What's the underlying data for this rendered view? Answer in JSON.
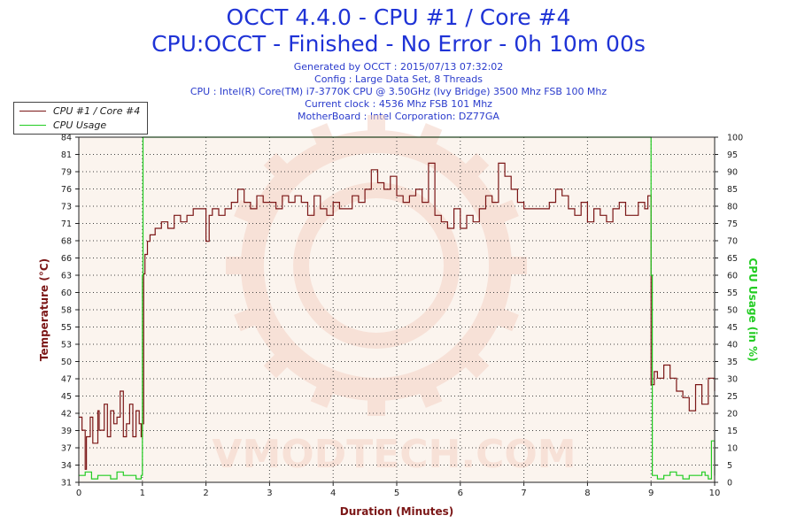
{
  "header": {
    "title_line1": "OCCT 4.4.0 - CPU #1 / Core #4",
    "title_line2": "CPU:OCCT - Finished - No Error - 0h 10m 00s",
    "info": [
      "Generated by OCCT : 2015/07/13 07:32:02",
      "Config : Large Data Set, 8 Threads",
      "CPU : Intel(R) Core(TM) i7-3770K CPU @ 3.50GHz (Ivy Bridge) 3500 Mhz FSB 100 Mhz",
      "Current clock : 4536 Mhz FSB 101 Mhz",
      "MotherBoard : Intel Corporation: DZ77GA"
    ]
  },
  "colors": {
    "temperature": "#7b1616",
    "cpu_usage": "#22cc22",
    "title": "#1f33d6",
    "plot_bg": "#fbf4ee",
    "watermark": "#f4d2c6"
  },
  "watermark_text": "VMODTECH.COM",
  "chart_data": {
    "type": "line",
    "xlabel": "Duration (Minutes)",
    "ylabel_left": "Temperature (°C)",
    "ylabel_right": "CPU Usage (in %)",
    "x_ticks": [
      "0",
      "1",
      "2",
      "3",
      "4",
      "5",
      "6",
      "7",
      "8",
      "9",
      "10"
    ],
    "xlim": [
      0,
      10
    ],
    "ylim_left": [
      31,
      84
    ],
    "ylim_right": [
      0,
      100
    ],
    "left_ticks": [
      "31",
      "34",
      "37",
      "39",
      "42",
      "45",
      "47",
      "50",
      "53",
      "55",
      "58",
      "60",
      "63",
      "66",
      "68",
      "71",
      "73",
      "76",
      "79",
      "81",
      "84"
    ],
    "right_ticks": [
      "0",
      "5",
      "10",
      "15",
      "20",
      "25",
      "30",
      "35",
      "40",
      "45",
      "50",
      "55",
      "60",
      "65",
      "70",
      "75",
      "80",
      "85",
      "90",
      "95",
      "100"
    ],
    "grid": true,
    "legend_position": "top-left",
    "series": [
      {
        "name": "CPU #1 / Core #4",
        "axis": "left",
        "x": [
          0,
          0.05,
          0.1,
          0.12,
          0.18,
          0.22,
          0.3,
          0.32,
          0.4,
          0.45,
          0.5,
          0.55,
          0.6,
          0.65,
          0.7,
          0.75,
          0.8,
          0.85,
          0.9,
          0.95,
          0.98,
          1.0,
          1.02,
          1.04,
          1.08,
          1.12,
          1.2,
          1.3,
          1.4,
          1.5,
          1.6,
          1.7,
          1.8,
          1.9,
          2.0,
          2.05,
          2.1,
          2.2,
          2.3,
          2.4,
          2.5,
          2.6,
          2.7,
          2.8,
          2.9,
          3.0,
          3.1,
          3.2,
          3.3,
          3.4,
          3.5,
          3.6,
          3.7,
          3.8,
          3.9,
          4.0,
          4.1,
          4.2,
          4.3,
          4.4,
          4.5,
          4.6,
          4.7,
          4.8,
          4.9,
          5.0,
          5.1,
          5.2,
          5.3,
          5.4,
          5.5,
          5.6,
          5.7,
          5.8,
          5.9,
          6.0,
          6.1,
          6.2,
          6.3,
          6.4,
          6.5,
          6.6,
          6.7,
          6.8,
          6.9,
          7.0,
          7.1,
          7.2,
          7.3,
          7.4,
          7.5,
          7.6,
          7.7,
          7.8,
          7.9,
          8.0,
          8.1,
          8.2,
          8.3,
          8.4,
          8.5,
          8.6,
          8.7,
          8.8,
          8.9,
          8.95,
          9.0,
          9.05,
          9.1,
          9.2,
          9.3,
          9.4,
          9.5,
          9.6,
          9.7,
          9.8,
          9.9,
          10.0
        ],
        "y": [
          41,
          39,
          33,
          38,
          41,
          37,
          42,
          39,
          43,
          38,
          42,
          40,
          41,
          45,
          38,
          40,
          43,
          38,
          42,
          40,
          38,
          40,
          63,
          66,
          68,
          69,
          70,
          71,
          70,
          72,
          71,
          72,
          73,
          73,
          68,
          72,
          73,
          72,
          73,
          74,
          76,
          74,
          73,
          75,
          74,
          74,
          73,
          75,
          74,
          75,
          74,
          72,
          75,
          73,
          72,
          74,
          73,
          73,
          75,
          74,
          76,
          79,
          77,
          76,
          78,
          75,
          74,
          75,
          76,
          74,
          80,
          72,
          71,
          70,
          73,
          70,
          72,
          71,
          73,
          75,
          74,
          80,
          78,
          76,
          74,
          73,
          73,
          73,
          73,
          74,
          76,
          75,
          73,
          72,
          74,
          71,
          73,
          72,
          71,
          73,
          74,
          72,
          72,
          74,
          73,
          75,
          46,
          48,
          47,
          49,
          47,
          45,
          44,
          42,
          46,
          43,
          47,
          45
        ]
      },
      {
        "name": "CPU Usage",
        "axis": "right",
        "x": [
          0,
          0.1,
          0.2,
          0.3,
          0.4,
          0.5,
          0.6,
          0.7,
          0.8,
          0.9,
          0.98,
          1.0,
          1.01,
          8.98,
          9.0,
          9.02,
          9.1,
          9.2,
          9.3,
          9.4,
          9.5,
          9.6,
          9.7,
          9.8,
          9.85,
          9.9,
          9.95,
          10.0
        ],
        "y": [
          2,
          3,
          1,
          2,
          2,
          1,
          3,
          2,
          2,
          1,
          2,
          60,
          100,
          100,
          60,
          2,
          1,
          2,
          3,
          2,
          1,
          2,
          2,
          3,
          2,
          1,
          12,
          2
        ]
      }
    ]
  }
}
